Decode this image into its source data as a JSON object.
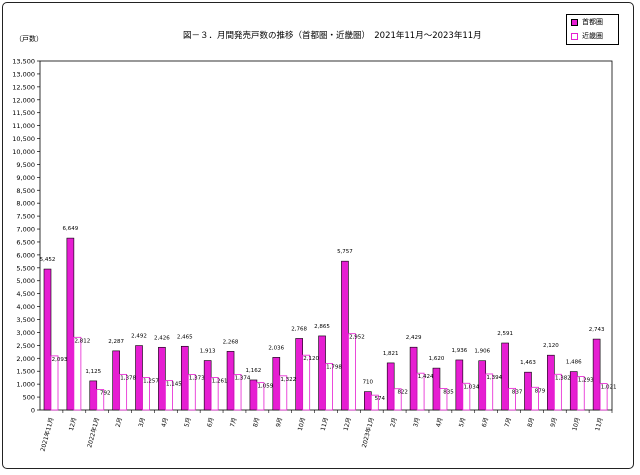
{
  "title": "図－３．月間発売戸数の推移（首都圏・近畿圏）　2021年11月～2023年11月",
  "unit_label": "（戸数）",
  "colors": {
    "shutoken": "#e61ed2",
    "kinki_fill": "#ffffff",
    "kinki_stroke": "#e61ed2"
  },
  "chart_data": {
    "type": "bar",
    "title": "図－３．月間発売戸数の推移（首都圏・近畿圏）　2021年11月～2023年11月",
    "ylabel": "（戸数）",
    "ylim": [
      0,
      13500
    ],
    "y_ticks": [
      "0",
      "500",
      "1,000",
      "1,500",
      "2,000",
      "2,500",
      "3,000",
      "3,500",
      "4,000",
      "4,500",
      "5,000",
      "5,500",
      "6,000",
      "6,500",
      "7,000",
      "7,500",
      "8,000",
      "8,500",
      "9,000",
      "9,500",
      "10,000",
      "10,500",
      "11,000",
      "11,500",
      "12,000",
      "12,500",
      "13,000",
      "13,500"
    ],
    "grid": false,
    "legend_position": "top-right",
    "categories": [
      "2021年11月",
      "12月",
      "2022年1月",
      "2月",
      "3月",
      "4月",
      "5月",
      "6月",
      "7月",
      "8月",
      "9月",
      "10月",
      "11月",
      "12月",
      "2023年1月",
      "2月",
      "3月",
      "4月",
      "5月",
      "6月",
      "7月",
      "8月",
      "9月",
      "10月",
      "11月"
    ],
    "series": [
      {
        "name": "首都圏",
        "values": [
          5452,
          6649,
          1125,
          2287,
          2492,
          2426,
          2465,
          1913,
          2268,
          1162,
          2036,
          2768,
          2865,
          5757,
          710,
          1821,
          2429,
          1620,
          1936,
          1906,
          2591,
          1463,
          2120,
          1486,
          2743
        ],
        "labels": [
          "5,452",
          "6,649",
          "1,125",
          "2,287",
          "2,492",
          "2,426",
          "2,465",
          "1,913",
          "2,268",
          "1,162",
          "2,036",
          "2,768",
          "2,865",
          "5,757",
          "710",
          "1,821",
          "2,429",
          "1,620",
          "1,936",
          "1,906",
          "2,591",
          "1,463",
          "2,120",
          "1,486",
          "2,743"
        ]
      },
      {
        "name": "近畿圏",
        "values": [
          2093,
          2812,
          792,
          1378,
          1257,
          1145,
          1373,
          1261,
          1374,
          1059,
          1322,
          2120,
          1798,
          2952,
          574,
          822,
          1424,
          835,
          1034,
          1394,
          837,
          879,
          1382,
          1293,
          1021
        ],
        "labels": [
          "2,093",
          "2,812",
          "792",
          "1,378",
          "1,257",
          "1,145",
          "1,373",
          "1,261",
          "1,374",
          "1,059",
          "1,322",
          "2,120",
          "1,798",
          "2,952",
          "574",
          "822",
          "1,424",
          "835",
          "1,034",
          "1,394",
          "837",
          "879",
          "1,382",
          "1,293",
          "1,021"
        ]
      }
    ]
  }
}
